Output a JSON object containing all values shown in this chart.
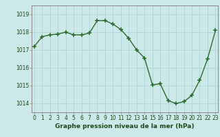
{
  "x": [
    0,
    1,
    2,
    3,
    4,
    5,
    6,
    7,
    8,
    9,
    10,
    11,
    12,
    13,
    14,
    15,
    16,
    17,
    18,
    19,
    20,
    21,
    22,
    23
  ],
  "y": [
    1017.2,
    1017.75,
    1017.85,
    1017.9,
    1018.0,
    1017.85,
    1017.85,
    1017.95,
    1018.65,
    1018.65,
    1018.45,
    1018.15,
    1017.65,
    1017.0,
    1016.55,
    1015.05,
    1015.1,
    1014.15,
    1014.0,
    1014.1,
    1014.45,
    1015.3,
    1016.5,
    1018.1
  ],
  "line_color": "#2d6a2d",
  "marker": "+",
  "markersize": 4,
  "linewidth": 1.0,
  "bg_color": "#cce8e8",
  "grid_color": "#b0d8d8",
  "xlabel": "Graphe pression niveau de la mer (hPa)",
  "xlabel_fontsize": 6.5,
  "ytick_labels": [
    "1014",
    "1015",
    "1016",
    "1017",
    "1018",
    "1019"
  ],
  "yticks": [
    1014,
    1015,
    1016,
    1017,
    1018,
    1019
  ],
  "xtick_labels": [
    "0",
    "1",
    "2",
    "3",
    "4",
    "5",
    "6",
    "7",
    "8",
    "9",
    "10",
    "11",
    "12",
    "13",
    "14",
    "15",
    "16",
    "17",
    "18",
    "19",
    "20",
    "21",
    "22",
    "23"
  ],
  "xticks": [
    0,
    1,
    2,
    3,
    4,
    5,
    6,
    7,
    8,
    9,
    10,
    11,
    12,
    13,
    14,
    15,
    16,
    17,
    18,
    19,
    20,
    21,
    22,
    23
  ],
  "ylim": [
    1013.5,
    1019.5
  ],
  "xlim": [
    -0.3,
    23.3
  ],
  "tick_fontsize": 5.5,
  "spine_color": "#888888",
  "xlabel_color": "#1a4a1a",
  "tick_color": "#2d6a2d"
}
